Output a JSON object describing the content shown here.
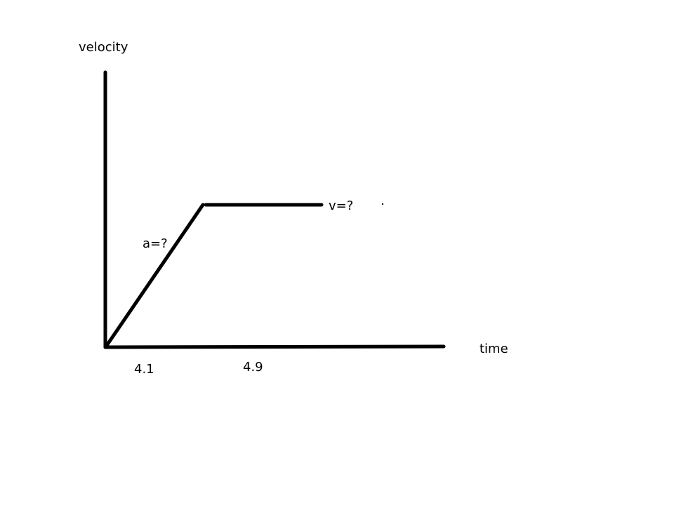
{
  "diagram": {
    "y_axis_label": "velocity",
    "x_axis_label": "time",
    "segment_labels": {
      "acceleration": "a=?",
      "velocity": "v=?"
    },
    "time_intervals": [
      "4.1",
      "4.9"
    ]
  },
  "colors": {
    "line": "#000000",
    "background": "#ffffff"
  }
}
